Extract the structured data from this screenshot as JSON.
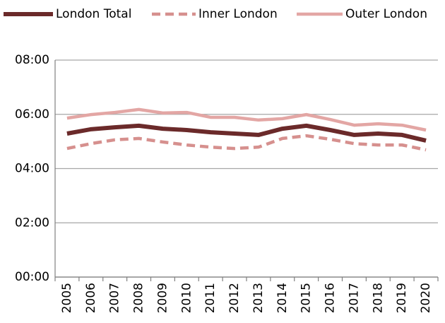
{
  "chart_data": {
    "type": "line",
    "categories": [
      "2005",
      "2006",
      "2007",
      "2008",
      "2009",
      "2010",
      "2011",
      "2012",
      "2013",
      "2014",
      "2015",
      "2016",
      "2017",
      "2018",
      "2019",
      "2020"
    ],
    "series": [
      {
        "name": "London Total",
        "color": "#6b2a2a",
        "line_style": "solid",
        "values": [
          5.29,
          5.45,
          5.52,
          5.58,
          5.47,
          5.42,
          5.34,
          5.29,
          5.24,
          5.47,
          5.58,
          5.42,
          5.24,
          5.29,
          5.24,
          5.03
        ]
      },
      {
        "name": "Inner London",
        "color": "#d6908e",
        "line_style": "dashed",
        "values": [
          4.74,
          4.92,
          5.06,
          5.11,
          4.98,
          4.87,
          4.79,
          4.74,
          4.79,
          5.11,
          5.21,
          5.08,
          4.92,
          4.87,
          4.87,
          4.69
        ]
      },
      {
        "name": "Outer London",
        "color": "#e3a6a4",
        "line_style": "solid",
        "values": [
          5.86,
          5.99,
          6.07,
          6.18,
          6.05,
          6.07,
          5.89,
          5.89,
          5.79,
          5.84,
          5.99,
          5.81,
          5.6,
          5.65,
          5.6,
          5.42
        ]
      }
    ],
    "ylim": [
      0,
      8
    ],
    "yticks": [
      {
        "value": 0,
        "label": "00:00"
      },
      {
        "value": 2,
        "label": "02:00"
      },
      {
        "value": 4,
        "label": "04:00"
      },
      {
        "value": 6,
        "label": "06:00"
      },
      {
        "value": 8,
        "label": "08:00"
      }
    ],
    "grid": true,
    "legend": "top"
  }
}
